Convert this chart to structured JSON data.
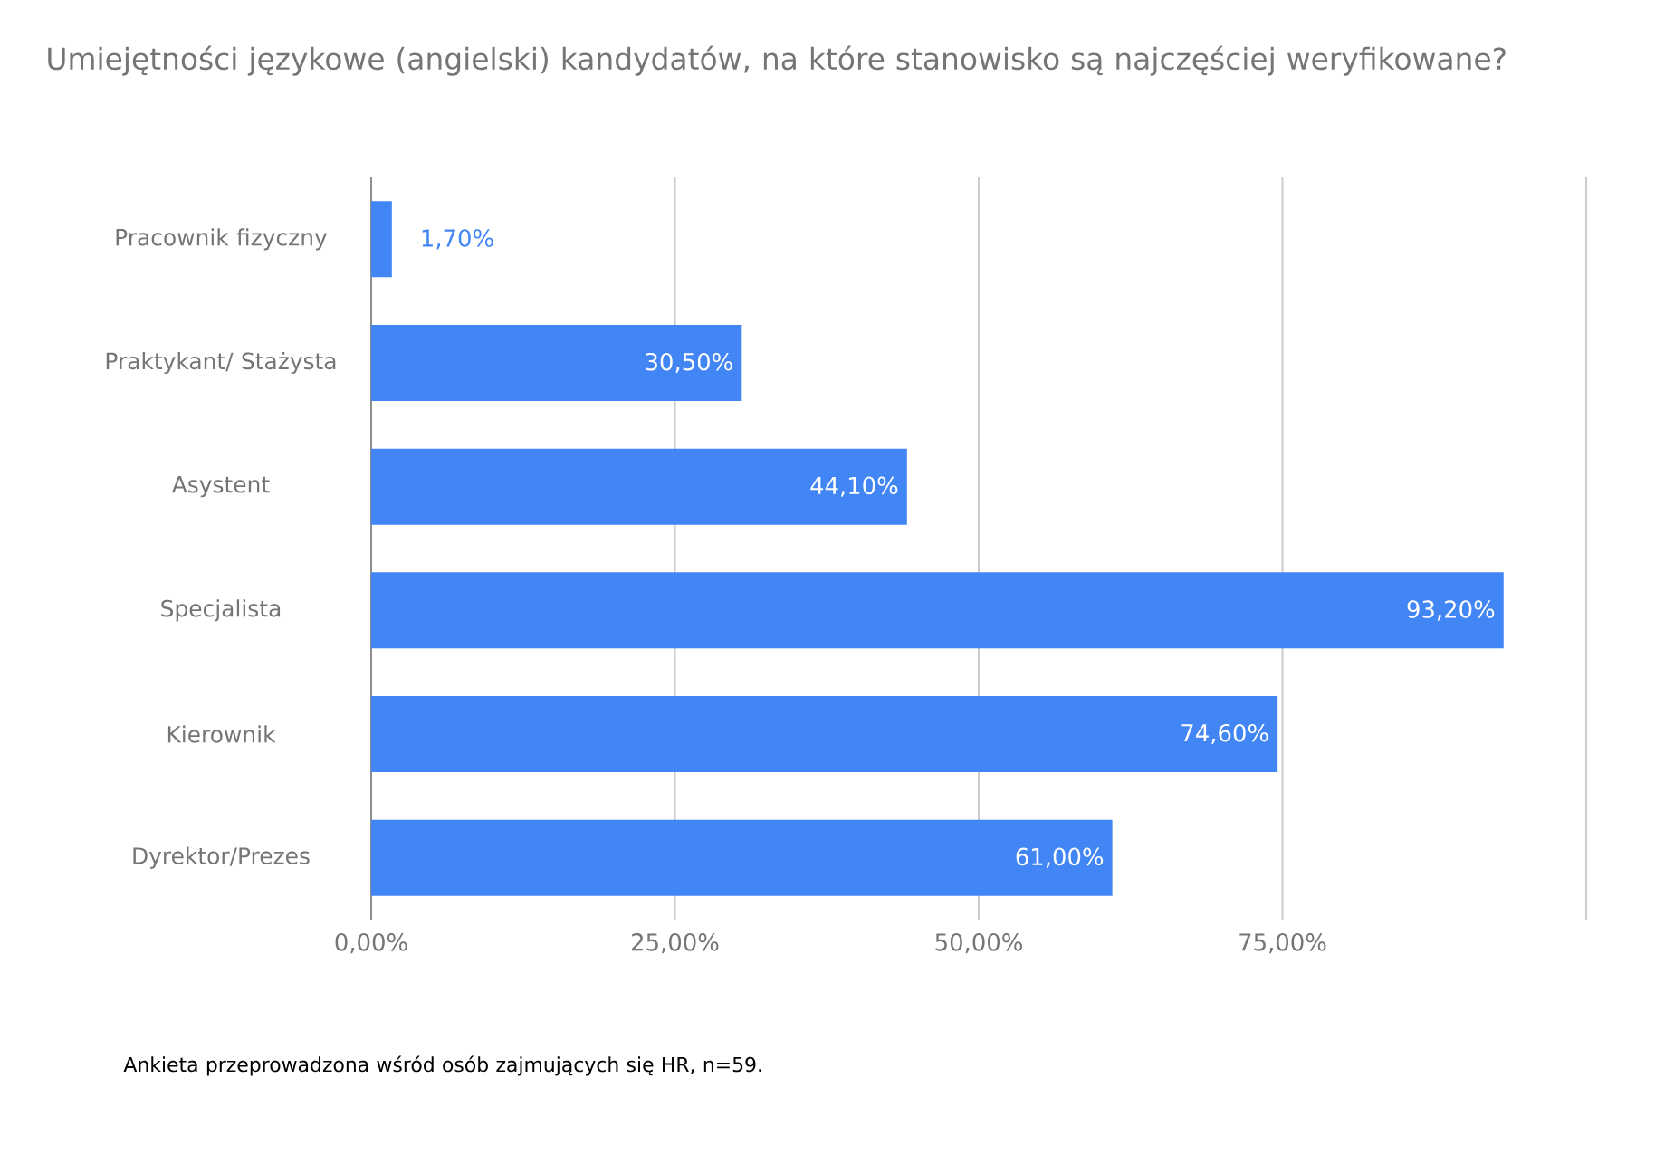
{
  "chart_data": {
    "type": "bar",
    "orientation": "horizontal",
    "title": "Umiejętności  językowe (angielski) kandydatów, na które stanowisko są najczęściej weryfikowane?",
    "categories": [
      "Pracownik fizyczny",
      "Praktykant/ Stażysta",
      "Asystent",
      "Specjalista",
      "Kierownik",
      "Dyrektor/Prezes"
    ],
    "values": [
      1.7,
      30.5,
      44.1,
      93.2,
      74.6,
      61.0
    ],
    "value_labels": [
      "1,70%",
      "30,50%",
      "44,10%",
      "93,20%",
      "74,60%",
      "61,00%"
    ],
    "color": "#4285f4",
    "xlim": [
      0,
      100
    ],
    "xticks": [
      {
        "value": 0,
        "label": "0,00%"
      },
      {
        "value": 25,
        "label": "25,00%"
      },
      {
        "value": 50,
        "label": "50,00%"
      },
      {
        "value": 75,
        "label": "75,00%"
      },
      {
        "value": 100,
        "label": null
      }
    ],
    "grid": "x",
    "annotations": [
      "Ankieta przeprowadzona wśród osób zajmujących się HR, n=59."
    ]
  }
}
